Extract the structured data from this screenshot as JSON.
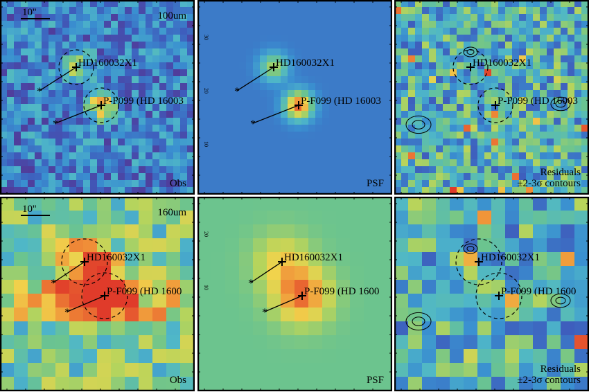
{
  "panels": [
    {
      "scale": "10''",
      "band": "100um",
      "labels": [
        "HD160032X1",
        "P-F099 (HD 16003"
      ],
      "corner": [
        "Obs"
      ]
    },
    {
      "ticks": [
        "30",
        "20",
        "10"
      ],
      "labels": [
        "HD160032X1",
        "P-F099 (HD 16003"
      ],
      "corner": [
        "PSF"
      ]
    },
    {
      "labels": [
        "HD160032X1",
        "P-F099 (HD 16003"
      ],
      "corner": [
        "Residuals",
        "±2-3σ contours"
      ]
    },
    {
      "scale": "10''",
      "band": "160um",
      "labels": [
        "HD160032X1",
        "P-F099 (HD 1600"
      ],
      "corner": [
        "Obs"
      ]
    },
    {
      "ticks": [
        "20",
        "10"
      ],
      "labels": [
        "HD160032X1",
        "P-F099 (HD 1600"
      ],
      "corner": [
        "PSF"
      ]
    },
    {
      "labels": [
        "HD160032X1",
        "P-F099 (HD 1600"
      ],
      "corner": [
        "Residuals",
        "±2-3σ contours"
      ]
    }
  ]
}
